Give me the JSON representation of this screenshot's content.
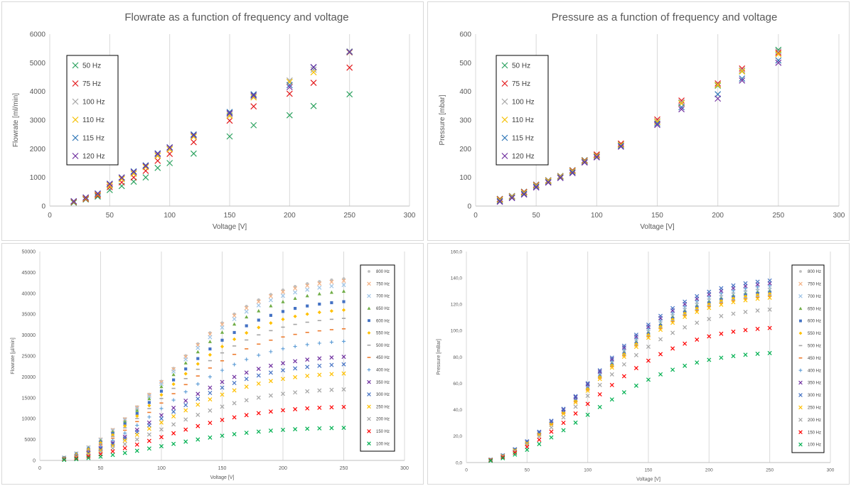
{
  "chart_data": [
    {
      "type": "scatter",
      "title": "Flowrate as a function of frequency and voltage",
      "xlabel": "Voltage [V]",
      "ylabel": "Flowrate [ml/min]",
      "xlim": [
        0,
        300
      ],
      "ylim": [
        0,
        6000
      ],
      "xticks": [
        0,
        50,
        100,
        150,
        200,
        250,
        300
      ],
      "yticks": [
        0,
        1000,
        2000,
        3000,
        4000,
        5000,
        6000
      ],
      "grid": "vertical",
      "legend": "left",
      "marker": "x",
      "x": [
        20,
        30,
        40,
        50,
        60,
        70,
        80,
        90,
        100,
        120,
        150,
        170,
        200,
        220,
        250
      ],
      "series": [
        {
          "name": "50 Hz",
          "color": "#2ca25f",
          "values": [
            120,
            230,
            330,
            560,
            700,
            850,
            1000,
            1330,
            1500,
            1830,
            2430,
            2820,
            3170,
            3490,
            3900
          ]
        },
        {
          "name": "75 Hz",
          "color": "#e31a1c",
          "values": [
            140,
            250,
            370,
            660,
            830,
            1000,
            1230,
            1580,
            1820,
            2230,
            2980,
            3480,
            3920,
            4300,
            4830
          ]
        },
        {
          "name": "100 Hz",
          "color": "#a6a6a6",
          "values": [
            160,
            280,
            410,
            740,
            960,
            1150,
            1380,
            1780,
            2010,
            2450,
            3200,
            3830,
            4380,
            4760,
            5400
          ]
        },
        {
          "name": "110 Hz",
          "color": "#f5c000",
          "values": [
            150,
            270,
            400,
            720,
            940,
            1130,
            1360,
            1750,
            1980,
            2420,
            3150,
            3790,
            4330,
            4670,
            5360
          ]
        },
        {
          "name": "115 Hz",
          "color": "#2e75b6",
          "values": [
            170,
            300,
            440,
            780,
            1000,
            1210,
            1420,
            1840,
            2050,
            2500,
            3280,
            3900,
            4220,
            4840,
            5380
          ]
        },
        {
          "name": "120 Hz",
          "color": "#7030a0",
          "values": [
            165,
            295,
            430,
            770,
            990,
            1190,
            1400,
            1820,
            2040,
            2470,
            3240,
            3860,
            4150,
            4850,
            5370
          ]
        }
      ]
    },
    {
      "type": "scatter",
      "title": "Pressure as a function of frequency and voltage",
      "xlabel": "Voltage [V]",
      "ylabel": "Pressure [mbar]",
      "xlim": [
        0,
        300
      ],
      "ylim": [
        0,
        600
      ],
      "xticks": [
        0,
        50,
        100,
        150,
        200,
        250,
        300
      ],
      "yticks": [
        0,
        100,
        200,
        300,
        400,
        500,
        600
      ],
      "grid": "vertical",
      "legend": "left",
      "marker": "x",
      "x": [
        20,
        30,
        40,
        50,
        60,
        70,
        80,
        90,
        100,
        120,
        150,
        170,
        200,
        220,
        250
      ],
      "series": [
        {
          "name": "50 Hz",
          "color": "#2ca25f",
          "values": [
            25,
            35,
            50,
            75,
            90,
            105,
            125,
            160,
            178,
            215,
            295,
            360,
            420,
            470,
            545
          ]
        },
        {
          "name": "75 Hz",
          "color": "#e31a1c",
          "values": [
            24,
            34,
            49,
            74,
            89,
            104,
            124,
            159,
            180,
            218,
            302,
            368,
            428,
            480,
            535
          ]
        },
        {
          "name": "100 Hz",
          "color": "#a6a6a6",
          "values": [
            22,
            33,
            47,
            72,
            88,
            103,
            122,
            157,
            176,
            214,
            296,
            362,
            424,
            474,
            540
          ]
        },
        {
          "name": "110 Hz",
          "color": "#f5c000",
          "values": [
            21,
            32,
            46,
            71,
            87,
            102,
            121,
            156,
            175,
            213,
            294,
            358,
            422,
            470,
            530
          ]
        },
        {
          "name": "115 Hz",
          "color": "#2e75b6",
          "values": [
            18,
            30,
            43,
            68,
            84,
            100,
            118,
            154,
            172,
            210,
            288,
            345,
            390,
            445,
            508
          ]
        },
        {
          "name": "120 Hz",
          "color": "#7030a0",
          "values": [
            15,
            28,
            40,
            65,
            82,
            98,
            115,
            152,
            170,
            207,
            283,
            338,
            375,
            438,
            500
          ]
        }
      ]
    },
    {
      "type": "scatter",
      "title": "",
      "xlabel": "Voltage [V]",
      "ylabel": "Flowrate [µl/min]",
      "xlim": [
        0,
        300
      ],
      "ylim": [
        0,
        50000
      ],
      "xticks": [
        0,
        50,
        100,
        150,
        200,
        250,
        300
      ],
      "yticks": [
        0,
        5000,
        10000,
        15000,
        20000,
        25000,
        30000,
        35000,
        40000,
        45000,
        50000
      ],
      "grid": "vertical",
      "legend": "right",
      "x": [
        20,
        30,
        40,
        50,
        60,
        70,
        80,
        90,
        100,
        110,
        120,
        130,
        140,
        150,
        160,
        170,
        180,
        190,
        200,
        210,
        220,
        230,
        240,
        250
      ],
      "series": [
        {
          "name": "800 Hz",
          "color": "#bfbfbf",
          "marker": "circle",
          "max": 43500
        },
        {
          "name": "750 Hz",
          "color": "#f4b183",
          "marker": "x",
          "max": 43000
        },
        {
          "name": "700 Hz",
          "color": "#9dc3e6",
          "marker": "x",
          "max": 42000
        },
        {
          "name": "650 Hz",
          "color": "#70ad47",
          "marker": "triangle",
          "max": 40500
        },
        {
          "name": "600 Hz",
          "color": "#4472c4",
          "marker": "square",
          "max": 38000
        },
        {
          "name": "550 Hz",
          "color": "#ffc000",
          "marker": "diamond",
          "max": 36000
        },
        {
          "name": "500 Hz",
          "color": "#a5a5a5",
          "marker": "dash",
          "max": 34000
        },
        {
          "name": "450 Hz",
          "color": "#ed7d31",
          "marker": "dash",
          "max": 31500
        },
        {
          "name": "400 Hz",
          "color": "#5b9bd5",
          "marker": "plus",
          "max": 28500
        },
        {
          "name": "350 Hz",
          "color": "#7030a0",
          "marker": "x",
          "max": 24800
        },
        {
          "name": "300 Hz",
          "color": "#4472c4",
          "marker": "x",
          "max": 23000
        },
        {
          "name": "250 Hz",
          "color": "#ffc000",
          "marker": "x",
          "max": 20800
        },
        {
          "name": "200 Hz",
          "color": "#a5a5a5",
          "marker": "x",
          "max": 17000
        },
        {
          "name": "150 Hz",
          "color": "#ff0000",
          "marker": "x",
          "max": 12800
        },
        {
          "name": "100 Hz",
          "color": "#00b050",
          "marker": "x",
          "max": 7800
        }
      ]
    },
    {
      "type": "scatter",
      "title": "",
      "xlabel": "Voltage [V]",
      "ylabel": "Pressure [mBar]",
      "xlim": [
        0,
        300
      ],
      "ylim": [
        0,
        160
      ],
      "xticks": [
        0,
        50,
        100,
        150,
        200,
        250,
        300
      ],
      "yticks": [
        "0,0",
        "20,0",
        "40,0",
        "60,0",
        "80,0",
        "100,0",
        "120,0",
        "140,0",
        "160,0"
      ],
      "grid": "vertical",
      "legend": "right",
      "x": [
        20,
        30,
        40,
        50,
        60,
        70,
        80,
        90,
        100,
        110,
        120,
        130,
        140,
        150,
        160,
        170,
        180,
        190,
        200,
        210,
        220,
        230,
        240,
        250
      ],
      "series": [
        {
          "name": "800 Hz",
          "color": "#bfbfbf",
          "marker": "circle",
          "max": 132
        },
        {
          "name": "750 Hz",
          "color": "#f4b183",
          "marker": "x",
          "max": 131
        },
        {
          "name": "700 Hz",
          "color": "#9dc3e6",
          "marker": "x",
          "max": 131
        },
        {
          "name": "650 Hz",
          "color": "#70ad47",
          "marker": "triangle",
          "max": 130
        },
        {
          "name": "600 Hz",
          "color": "#4472c4",
          "marker": "square",
          "max": 129
        },
        {
          "name": "550 Hz",
          "color": "#ffc000",
          "marker": "diamond",
          "max": 128
        },
        {
          "name": "500 Hz",
          "color": "#a5a5a5",
          "marker": "dash",
          "max": 127
        },
        {
          "name": "450 Hz",
          "color": "#ed7d31",
          "marker": "dash",
          "max": 126
        },
        {
          "name": "400 Hz",
          "color": "#5b9bd5",
          "marker": "plus",
          "max": 134
        },
        {
          "name": "350 Hz",
          "color": "#7030a0",
          "marker": "x",
          "max": 136
        },
        {
          "name": "300 Hz",
          "color": "#4472c4",
          "marker": "x",
          "max": 138
        },
        {
          "name": "250 Hz",
          "color": "#ffc000",
          "marker": "x",
          "max": 125
        },
        {
          "name": "200 Hz",
          "color": "#a5a5a5",
          "marker": "x",
          "max": 116
        },
        {
          "name": "150 Hz",
          "color": "#ff0000",
          "marker": "x",
          "max": 102
        },
        {
          "name": "100 Hz",
          "color": "#00b050",
          "marker": "x",
          "max": 83
        }
      ]
    }
  ]
}
